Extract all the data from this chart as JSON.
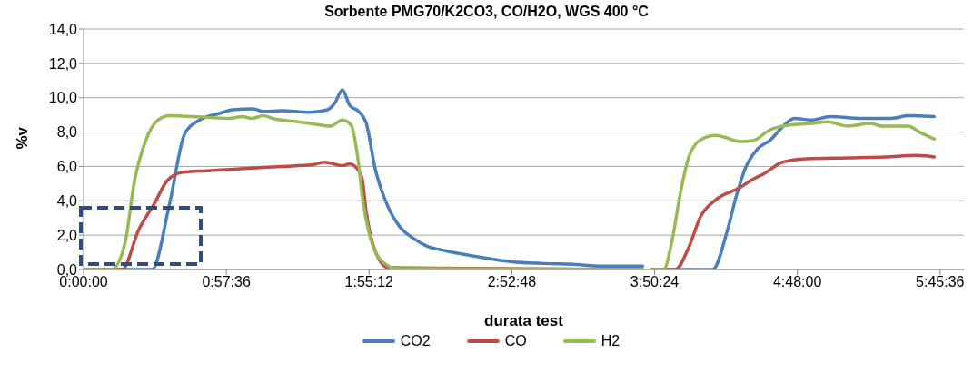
{
  "chart_data": {
    "type": "line",
    "title": "Sorbente PMG70/K2CO3, CO/H2O, WGS 400 °C",
    "xlabel": "durata test",
    "ylabel": "%v",
    "xlim": [
      0,
      5.92
    ],
    "xticks": [
      {
        "value": 0,
        "label": "0:00:00"
      },
      {
        "value": 0.96,
        "label": "0:57:36"
      },
      {
        "value": 1.92,
        "label": "1:55:12"
      },
      {
        "value": 2.88,
        "label": "2:52:48"
      },
      {
        "value": 3.84,
        "label": "3:50:24"
      },
      {
        "value": 4.8,
        "label": "4:48:00"
      },
      {
        "value": 5.76,
        "label": "5:45:36"
      }
    ],
    "ylim": [
      0,
      14
    ],
    "yticks": [
      {
        "value": 0,
        "label": "0,0"
      },
      {
        "value": 2,
        "label": "2,0"
      },
      {
        "value": 4,
        "label": "4,0"
      },
      {
        "value": 6,
        "label": "6,0"
      },
      {
        "value": 8,
        "label": "8,0"
      },
      {
        "value": 10,
        "label": "10,0"
      },
      {
        "value": 12,
        "label": "12,0"
      },
      {
        "value": 14,
        "label": "14,0"
      }
    ],
    "grid": "y",
    "legend": "bottom",
    "marker": "none",
    "line_style": "solid",
    "series": [
      {
        "name": "CO2",
        "color": "#4a7ebb",
        "x": [
          0,
          0.46,
          0.58,
          0.68,
          0.78,
          0.92,
          1.0,
          1.14,
          1.21,
          1.33,
          1.52,
          1.64,
          1.69,
          1.74,
          1.79,
          1.85,
          1.9,
          1.96,
          2.04,
          2.13,
          2.22,
          2.31,
          2.43,
          2.68,
          2.88,
          3.09,
          3.29,
          3.49,
          3.76,
          3.79,
          3.82,
          4.23,
          4.33,
          4.39,
          4.45,
          4.53,
          4.62,
          4.7,
          4.78,
          4.9,
          5.02,
          5.23,
          5.43,
          5.55,
          5.72
        ],
        "values": [
          0,
          0,
          3.9,
          7.9,
          8.7,
          9.1,
          9.3,
          9.35,
          9.2,
          9.25,
          9.15,
          9.3,
          9.7,
          10.45,
          9.55,
          9.2,
          8.55,
          5.9,
          3.8,
          2.45,
          1.8,
          1.35,
          1.1,
          0.7,
          0.45,
          0.35,
          0.3,
          0.2,
          0.2,
          null,
          0,
          0,
          2.3,
          4.3,
          5.9,
          7.0,
          7.55,
          8.3,
          8.8,
          8.7,
          8.9,
          8.8,
          8.8,
          8.95,
          8.9
        ]
      },
      {
        "name": "CO",
        "color": "#be4b48",
        "x": [
          0,
          0.26,
          0.37,
          0.48,
          0.56,
          0.66,
          0.83,
          1.13,
          1.33,
          1.54,
          1.62,
          1.74,
          1.79,
          1.87,
          1.9,
          1.96,
          2.05,
          3.76,
          3.79,
          3.82,
          3.98,
          4.07,
          4.15,
          4.25,
          4.41,
          4.51,
          4.57,
          4.7,
          4.86,
          5.14,
          5.39,
          5.6,
          5.72
        ],
        "values": [
          0,
          0,
          2.3,
          3.9,
          5.15,
          5.65,
          5.75,
          5.9,
          6.0,
          6.1,
          6.25,
          6.05,
          6.15,
          5.4,
          3.4,
          1.1,
          0.1,
          0,
          null,
          0,
          0,
          1.3,
          3.1,
          4.05,
          4.75,
          5.3,
          5.55,
          6.25,
          6.45,
          6.5,
          6.55,
          6.65,
          6.55
        ]
      },
      {
        "name": "H2",
        "color": "#98b954",
        "x": [
          0,
          0.19,
          0.28,
          0.34,
          0.42,
          0.5,
          0.58,
          0.74,
          0.98,
          1.07,
          1.13,
          1.21,
          1.27,
          1.44,
          1.56,
          1.66,
          1.74,
          1.8,
          1.84,
          1.88,
          1.93,
          2.01,
          2.11,
          3.76,
          3.79,
          3.82,
          3.9,
          3.96,
          4.01,
          4.07,
          4.15,
          4.25,
          4.31,
          4.41,
          4.5,
          4.62,
          4.74,
          4.9,
          5.0,
          5.14,
          5.29,
          5.37,
          5.55,
          5.61,
          5.72
        ],
        "values": [
          0,
          0,
          1.6,
          5.05,
          7.55,
          8.7,
          8.95,
          8.9,
          8.8,
          8.9,
          8.8,
          8.95,
          8.8,
          8.6,
          8.45,
          8.35,
          8.7,
          8.4,
          6.75,
          3.9,
          1.8,
          0.45,
          0.05,
          0,
          null,
          0,
          0,
          1.8,
          4.3,
          6.55,
          7.55,
          7.8,
          7.7,
          7.45,
          7.5,
          8.15,
          8.4,
          8.5,
          8.6,
          8.35,
          8.5,
          8.35,
          8.35,
          8.05,
          7.6
        ]
      }
    ]
  }
}
